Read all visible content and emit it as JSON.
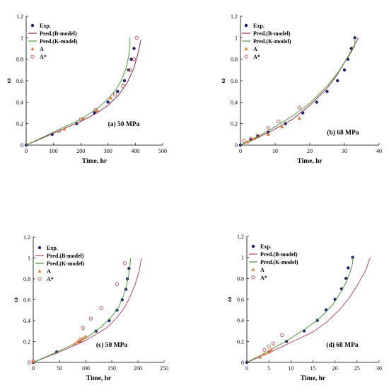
{
  "chart_data": [
    {
      "type": "line",
      "panel_label": "(a) 50 MPa",
      "xlabel": "Time, hr",
      "ylabel": "ω",
      "xlim": [
        0,
        500
      ],
      "ylim": [
        0,
        1.2
      ],
      "xticks": [
        0,
        100,
        200,
        300,
        400,
        500
      ],
      "yticks": [
        0,
        0.2,
        0.4,
        0.6,
        0.8,
        1,
        1.2
      ],
      "legend_position": "top-left",
      "grid": false,
      "series": [
        {
          "name": "Exp.",
          "kind": "scatter",
          "marker": "dot",
          "color": "#1a1f6e",
          "x": [
            0,
            95,
            185,
            250,
            300,
            335,
            360,
            375,
            385,
            395
          ],
          "y": [
            0,
            0.1,
            0.2,
            0.3,
            0.4,
            0.5,
            0.6,
            0.7,
            0.8,
            0.9
          ]
        },
        {
          "name": "Pred.(B-model)",
          "kind": "line",
          "color": "#8b2a45",
          "x": [
            0,
            100,
            200,
            260,
            300,
            340,
            370,
            395,
            410,
            420
          ],
          "y": [
            0,
            0.11,
            0.22,
            0.3,
            0.37,
            0.47,
            0.58,
            0.72,
            0.86,
            0.98
          ]
        },
        {
          "name": "Pred.(K-model)",
          "kind": "line",
          "color": "#4c9a3a",
          "x": [
            0,
            100,
            200,
            260,
            300,
            330,
            350,
            365,
            375,
            380,
            380
          ],
          "y": [
            0,
            0.12,
            0.24,
            0.34,
            0.43,
            0.52,
            0.61,
            0.71,
            0.82,
            0.92,
            1.0
          ]
        },
        {
          "name": "A",
          "kind": "scatter",
          "marker": "triangle",
          "color": "#e07b39",
          "x": [
            140,
            210,
            260,
            310
          ],
          "y": [
            0.15,
            0.25,
            0.32,
            0.44
          ]
        },
        {
          "name": "A*",
          "kind": "scatter",
          "marker": "circle",
          "color": "#c0504d",
          "x": [
            120,
            200,
            255,
            325,
            355,
            380,
            395,
            405
          ],
          "y": [
            0.13,
            0.24,
            0.33,
            0.47,
            0.55,
            0.7,
            0.8,
            1.0
          ]
        }
      ]
    },
    {
      "type": "line",
      "panel_label": "(b) 68 MPa",
      "xlabel": "Time, hr",
      "ylabel": "ω",
      "xlim": [
        0,
        40
      ],
      "ylim": [
        0,
        1.2
      ],
      "xticks": [
        0,
        10,
        20,
        30,
        40
      ],
      "yticks": [
        0,
        0.2,
        0.4,
        0.6,
        0.8,
        1,
        1.2
      ],
      "legend_position": "top-left",
      "grid": false,
      "series": [
        {
          "name": "Exp.",
          "kind": "scatter",
          "marker": "dot",
          "color": "#1a1f6e",
          "x": [
            0,
            3,
            5,
            8,
            13,
            18,
            22,
            25,
            28,
            30,
            31,
            32,
            33
          ],
          "y": [
            0,
            0.05,
            0.08,
            0.12,
            0.2,
            0.3,
            0.4,
            0.5,
            0.6,
            0.7,
            0.8,
            0.9,
            1.0
          ]
        },
        {
          "name": "Pred.(B-model)",
          "kind": "line",
          "color": "#8b2a45",
          "x": [
            0,
            5,
            10,
            15,
            20,
            25,
            28,
            30,
            32,
            34
          ],
          "y": [
            0,
            0.07,
            0.15,
            0.24,
            0.37,
            0.53,
            0.66,
            0.77,
            0.88,
            1.0
          ]
        },
        {
          "name": "Pred.(K-model)",
          "kind": "line",
          "color": "#4c9a3a",
          "x": [
            0,
            5,
            10,
            15,
            20,
            25,
            28,
            30,
            32,
            33,
            33
          ],
          "y": [
            0,
            0.08,
            0.17,
            0.27,
            0.39,
            0.55,
            0.67,
            0.77,
            0.87,
            0.93,
            1.0
          ]
        },
        {
          "name": "A",
          "kind": "scatter",
          "marker": "triangle",
          "color": "#e07b39",
          "x": [
            2,
            4,
            8,
            12,
            17
          ],
          "y": [
            0.03,
            0.06,
            0.1,
            0.17,
            0.25
          ]
        },
        {
          "name": "A*",
          "kind": "scatter",
          "marker": "circle",
          "color": "#c0504d",
          "x": [
            1,
            3,
            5,
            8,
            11,
            17
          ],
          "y": [
            0.04,
            0.06,
            0.09,
            0.16,
            0.22,
            0.35
          ]
        }
      ]
    },
    {
      "type": "line",
      "panel_label": "(c) 50 MPa",
      "xlabel": "Time, hr",
      "ylabel": "ω",
      "xlim": [
        0,
        250
      ],
      "ylim": [
        0,
        1.2
      ],
      "xticks": [
        0,
        50,
        100,
        150,
        200,
        250
      ],
      "yticks": [
        0,
        0.2,
        0.4,
        0.6,
        0.8,
        1,
        1.2
      ],
      "legend_position": "top-left",
      "grid": false,
      "series": [
        {
          "name": "Exp.",
          "kind": "scatter",
          "marker": "dot",
          "color": "#1a1f6e",
          "x": [
            0,
            45,
            90,
            120,
            145,
            160,
            170,
            177,
            180,
            183
          ],
          "y": [
            0,
            0.1,
            0.2,
            0.3,
            0.4,
            0.5,
            0.6,
            0.7,
            0.8,
            0.9
          ]
        },
        {
          "name": "Pred.(B-model)",
          "kind": "line",
          "color": "#b5476a",
          "x": [
            0,
            50,
            100,
            140,
            160,
            175,
            185,
            195,
            202,
            207
          ],
          "y": [
            0,
            0.1,
            0.21,
            0.33,
            0.43,
            0.53,
            0.63,
            0.75,
            0.87,
            1.0
          ]
        },
        {
          "name": "Pred.(K-model)",
          "kind": "line",
          "color": "#4c9a3a",
          "x": [
            0,
            50,
            100,
            130,
            150,
            163,
            172,
            178,
            182,
            185,
            186
          ],
          "y": [
            0,
            0.11,
            0.23,
            0.34,
            0.44,
            0.53,
            0.63,
            0.73,
            0.83,
            0.93,
            1.0
          ]
        },
        {
          "name": "A",
          "kind": "scatter",
          "marker": "triangle",
          "color": "#e07b39",
          "x": [
            0,
            80,
            85,
            90,
            95,
            100
          ],
          "y": [
            0.01,
            0.18,
            0.2,
            0.21,
            0.23,
            0.25
          ]
        },
        {
          "name": "A*",
          "kind": "scatter",
          "marker": "circle",
          "color": "#c0504d",
          "x": [
            0,
            90,
            95,
            110,
            130,
            160,
            175
          ],
          "y": [
            0.01,
            0.22,
            0.33,
            0.42,
            0.52,
            0.75,
            0.95
          ]
        }
      ]
    },
    {
      "type": "line",
      "panel_label": "(d) 68 MPa",
      "xlabel": "Time, hr",
      "ylabel": "ω",
      "xlim": [
        0,
        30
      ],
      "ylim": [
        0,
        1.2
      ],
      "xticks": [
        0,
        5,
        10,
        15,
        20,
        25,
        30
      ],
      "yticks": [
        0,
        0.2,
        0.4,
        0.6,
        0.8,
        1,
        1.2
      ],
      "legend_position": "top-left",
      "grid": false,
      "series": [
        {
          "name": "Exp.",
          "kind": "scatter",
          "marker": "dot",
          "color": "#1a1f6e",
          "x": [
            0,
            5,
            9,
            13,
            16,
            18,
            20,
            21.5,
            22.5,
            23,
            24
          ],
          "y": [
            0,
            0.1,
            0.2,
            0.3,
            0.4,
            0.5,
            0.6,
            0.7,
            0.8,
            0.9,
            1.0
          ]
        },
        {
          "name": "Pred.(B-model)",
          "kind": "line",
          "color": "#b5476a",
          "x": [
            0,
            5,
            10,
            15,
            18,
            21,
            23,
            25,
            27,
            28
          ],
          "y": [
            0,
            0.09,
            0.19,
            0.29,
            0.38,
            0.5,
            0.6,
            0.73,
            0.88,
            1.0
          ]
        },
        {
          "name": "Pred.(K-model)",
          "kind": "line",
          "color": "#4c9a3a",
          "x": [
            0,
            5,
            10,
            14,
            17,
            19.5,
            21,
            22.5,
            23.5,
            24,
            24
          ],
          "y": [
            0,
            0.11,
            0.23,
            0.34,
            0.44,
            0.55,
            0.65,
            0.76,
            0.87,
            0.95,
            1.0
          ]
        },
        {
          "name": "A",
          "kind": "scatter",
          "marker": "triangle",
          "color": "#e07b39",
          "x": [
            3,
            4,
            5,
            5.5
          ],
          "y": [
            0.05,
            0.08,
            0.1,
            0.12
          ]
        },
        {
          "name": "A*",
          "kind": "scatter",
          "marker": "circle",
          "color": "#c0504d",
          "x": [
            4,
            5,
            6,
            8
          ],
          "y": [
            0.12,
            0.15,
            0.18,
            0.26
          ]
        }
      ]
    }
  ]
}
